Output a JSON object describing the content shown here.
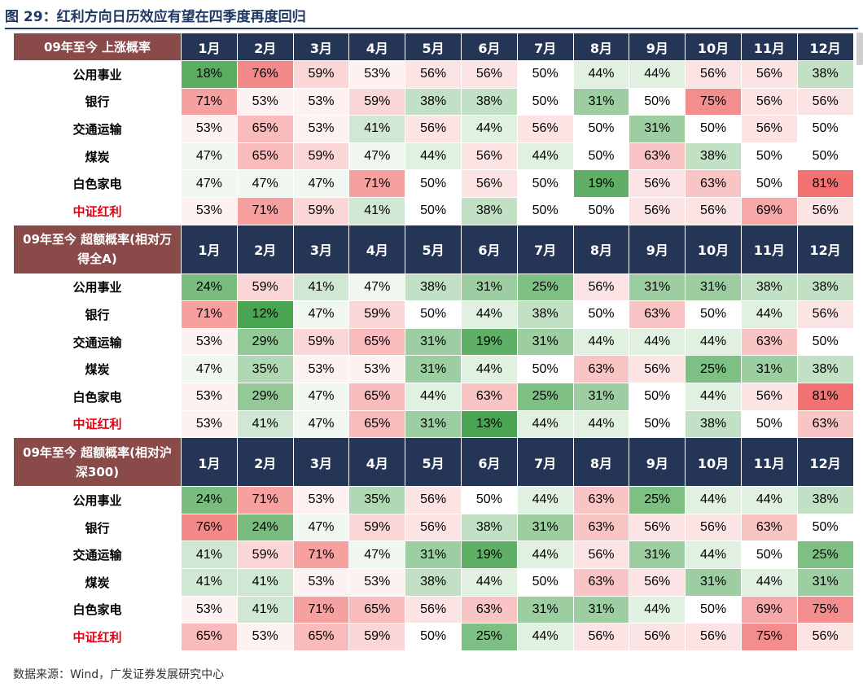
{
  "title": "图 29：红利方向日历效应有望在四季度再度回归",
  "source": "数据来源：Wind，广发证券发展研究中心",
  "chart_data": {
    "type": "table",
    "months": [
      "1月",
      "2月",
      "3月",
      "4月",
      "5月",
      "6月",
      "7月",
      "8月",
      "9月",
      "10月",
      "11月",
      "12月"
    ],
    "color_scale": {
      "low": "#4aa552",
      "mid": "#ffffff",
      "high": "#f06060"
    },
    "sections": [
      {
        "header": "09年至今 上涨概率",
        "rows": [
          {
            "name": "公用事业",
            "values": [
              18,
              76,
              59,
              53,
              56,
              56,
              50,
              44,
              44,
              56,
              56,
              38
            ]
          },
          {
            "name": "银行",
            "values": [
              71,
              53,
              53,
              59,
              38,
              38,
              50,
              31,
              50,
              75,
              56,
              56
            ]
          },
          {
            "name": "交通运输",
            "values": [
              53,
              65,
              53,
              41,
              56,
              44,
              56,
              50,
              31,
              50,
              56,
              50
            ]
          },
          {
            "name": "煤炭",
            "values": [
              47,
              65,
              59,
              47,
              44,
              56,
              44,
              50,
              63,
              38,
              50,
              50
            ]
          },
          {
            "name": "白色家电",
            "values": [
              47,
              47,
              47,
              71,
              50,
              56,
              50,
              19,
              56,
              63,
              50,
              81
            ]
          },
          {
            "name": "中证红利",
            "values": [
              53,
              71,
              59,
              41,
              50,
              38,
              50,
              50,
              56,
              56,
              69,
              56
            ],
            "highlight": true
          }
        ]
      },
      {
        "header": "09年至今 超额概率(相对万得全A)",
        "rows": [
          {
            "name": "公用事业",
            "values": [
              24,
              59,
              41,
              47,
              38,
              31,
              25,
              56,
              31,
              31,
              38,
              38
            ]
          },
          {
            "name": "银行",
            "values": [
              71,
              12,
              47,
              59,
              50,
              44,
              38,
              50,
              63,
              50,
              44,
              56
            ]
          },
          {
            "name": "交通运输",
            "values": [
              53,
              29,
              59,
              65,
              31,
              19,
              31,
              44,
              44,
              44,
              63,
              50
            ]
          },
          {
            "name": "煤炭",
            "values": [
              47,
              35,
              53,
              53,
              31,
              44,
              50,
              63,
              56,
              25,
              31,
              38
            ]
          },
          {
            "name": "白色家电",
            "values": [
              53,
              29,
              47,
              65,
              44,
              63,
              25,
              31,
              50,
              44,
              56,
              81
            ]
          },
          {
            "name": "中证红利",
            "values": [
              53,
              41,
              47,
              65,
              31,
              13,
              44,
              44,
              50,
              38,
              50,
              63
            ],
            "highlight": true
          }
        ]
      },
      {
        "header": "09年至今 超额概率(相对沪深300)",
        "rows": [
          {
            "name": "公用事业",
            "values": [
              24,
              71,
              53,
              35,
              56,
              50,
              44,
              63,
              25,
              44,
              44,
              38
            ]
          },
          {
            "name": "银行",
            "values": [
              76,
              24,
              47,
              59,
              56,
              38,
              31,
              63,
              56,
              56,
              63,
              50
            ]
          },
          {
            "name": "交通运输",
            "values": [
              41,
              59,
              71,
              47,
              31,
              19,
              44,
              56,
              31,
              44,
              50,
              25
            ]
          },
          {
            "name": "煤炭",
            "values": [
              41,
              41,
              53,
              53,
              38,
              44,
              50,
              63,
              56,
              31,
              44,
              31
            ]
          },
          {
            "name": "白色家电",
            "values": [
              53,
              41,
              71,
              65,
              56,
              63,
              31,
              31,
              44,
              50,
              69,
              75
            ]
          },
          {
            "name": "中证红利",
            "values": [
              65,
              53,
              65,
              59,
              50,
              25,
              44,
              56,
              56,
              56,
              75,
              56
            ],
            "highlight": true
          }
        ]
      }
    ]
  }
}
